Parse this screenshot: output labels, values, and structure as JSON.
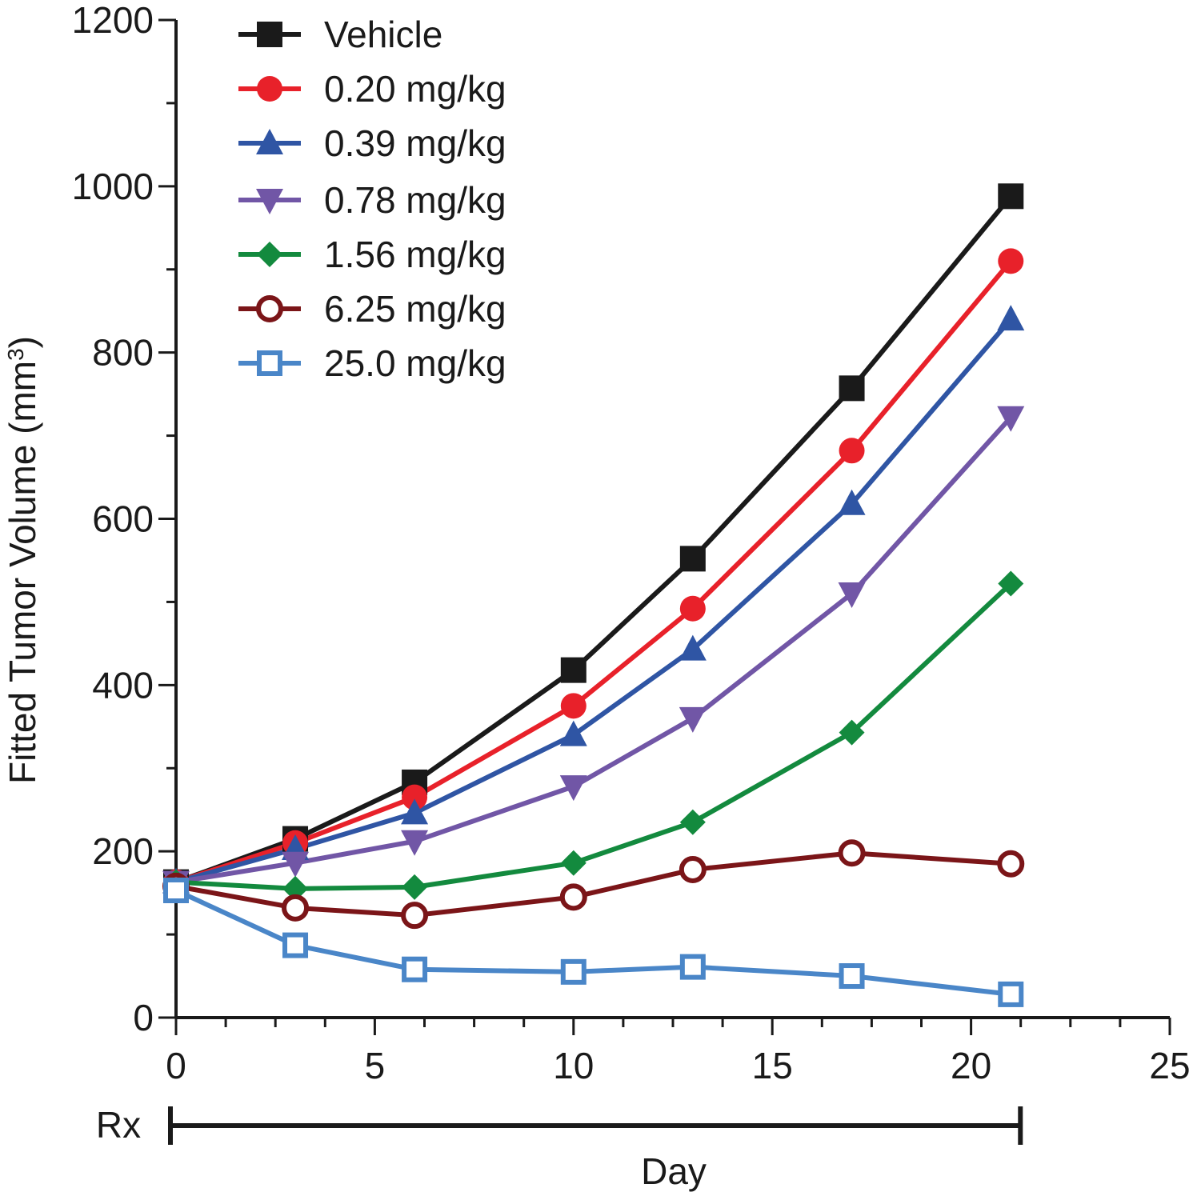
{
  "chart_data": {
    "type": "line",
    "title": "",
    "xlabel": "Day",
    "ylabel": "Fitted Tumor Volume (mm",
    "ylabel_sup": "3",
    "ylabel_close": ")",
    "xlim": [
      0,
      25
    ],
    "ylim": [
      0,
      1200
    ],
    "x_ticks": [
      0,
      5,
      10,
      15,
      20,
      25
    ],
    "y_ticks": [
      0,
      200,
      400,
      600,
      800,
      1000,
      1200
    ],
    "x_minor_step": 1.25,
    "y_minor_step": 100,
    "grid": false,
    "legend_position": "top-left",
    "x": [
      0,
      3,
      6,
      10,
      13,
      17,
      21
    ],
    "series": [
      {
        "name": "Vehicle",
        "color": "#1a1a1a",
        "marker": "square-filled",
        "values": [
          163,
          215,
          283,
          418,
          552,
          757,
          988
        ]
      },
      {
        "name": "0.20 mg/kg",
        "color": "#e8212a",
        "marker": "circle-filled",
        "values": [
          163,
          210,
          265,
          375,
          492,
          682,
          910
        ]
      },
      {
        "name": "0.39 mg/kg",
        "color": "#2f55a4",
        "marker": "triangle-up-filled",
        "values": [
          163,
          203,
          246,
          340,
          443,
          618,
          840
        ]
      },
      {
        "name": "0.78 mg/kg",
        "color": "#7156a6",
        "marker": "triangle-down-filled",
        "values": [
          163,
          186,
          212,
          278,
          360,
          510,
          722
        ]
      },
      {
        "name": "1.56 mg/kg",
        "color": "#138a3e",
        "marker": "diamond-filled",
        "values": [
          163,
          155,
          157,
          186,
          235,
          343,
          522
        ]
      },
      {
        "name": "6.25 mg/kg",
        "color": "#7b1518",
        "marker": "circle-open",
        "values": [
          158,
          132,
          123,
          145,
          178,
          198,
          185
        ]
      },
      {
        "name": "25.0 mg/kg",
        "color": "#4a86c8",
        "marker": "square-open",
        "values": [
          153,
          87,
          58,
          55,
          61,
          50,
          28
        ]
      }
    ],
    "treatment_bar": {
      "label": "Rx",
      "start": 0,
      "end": 21
    }
  }
}
